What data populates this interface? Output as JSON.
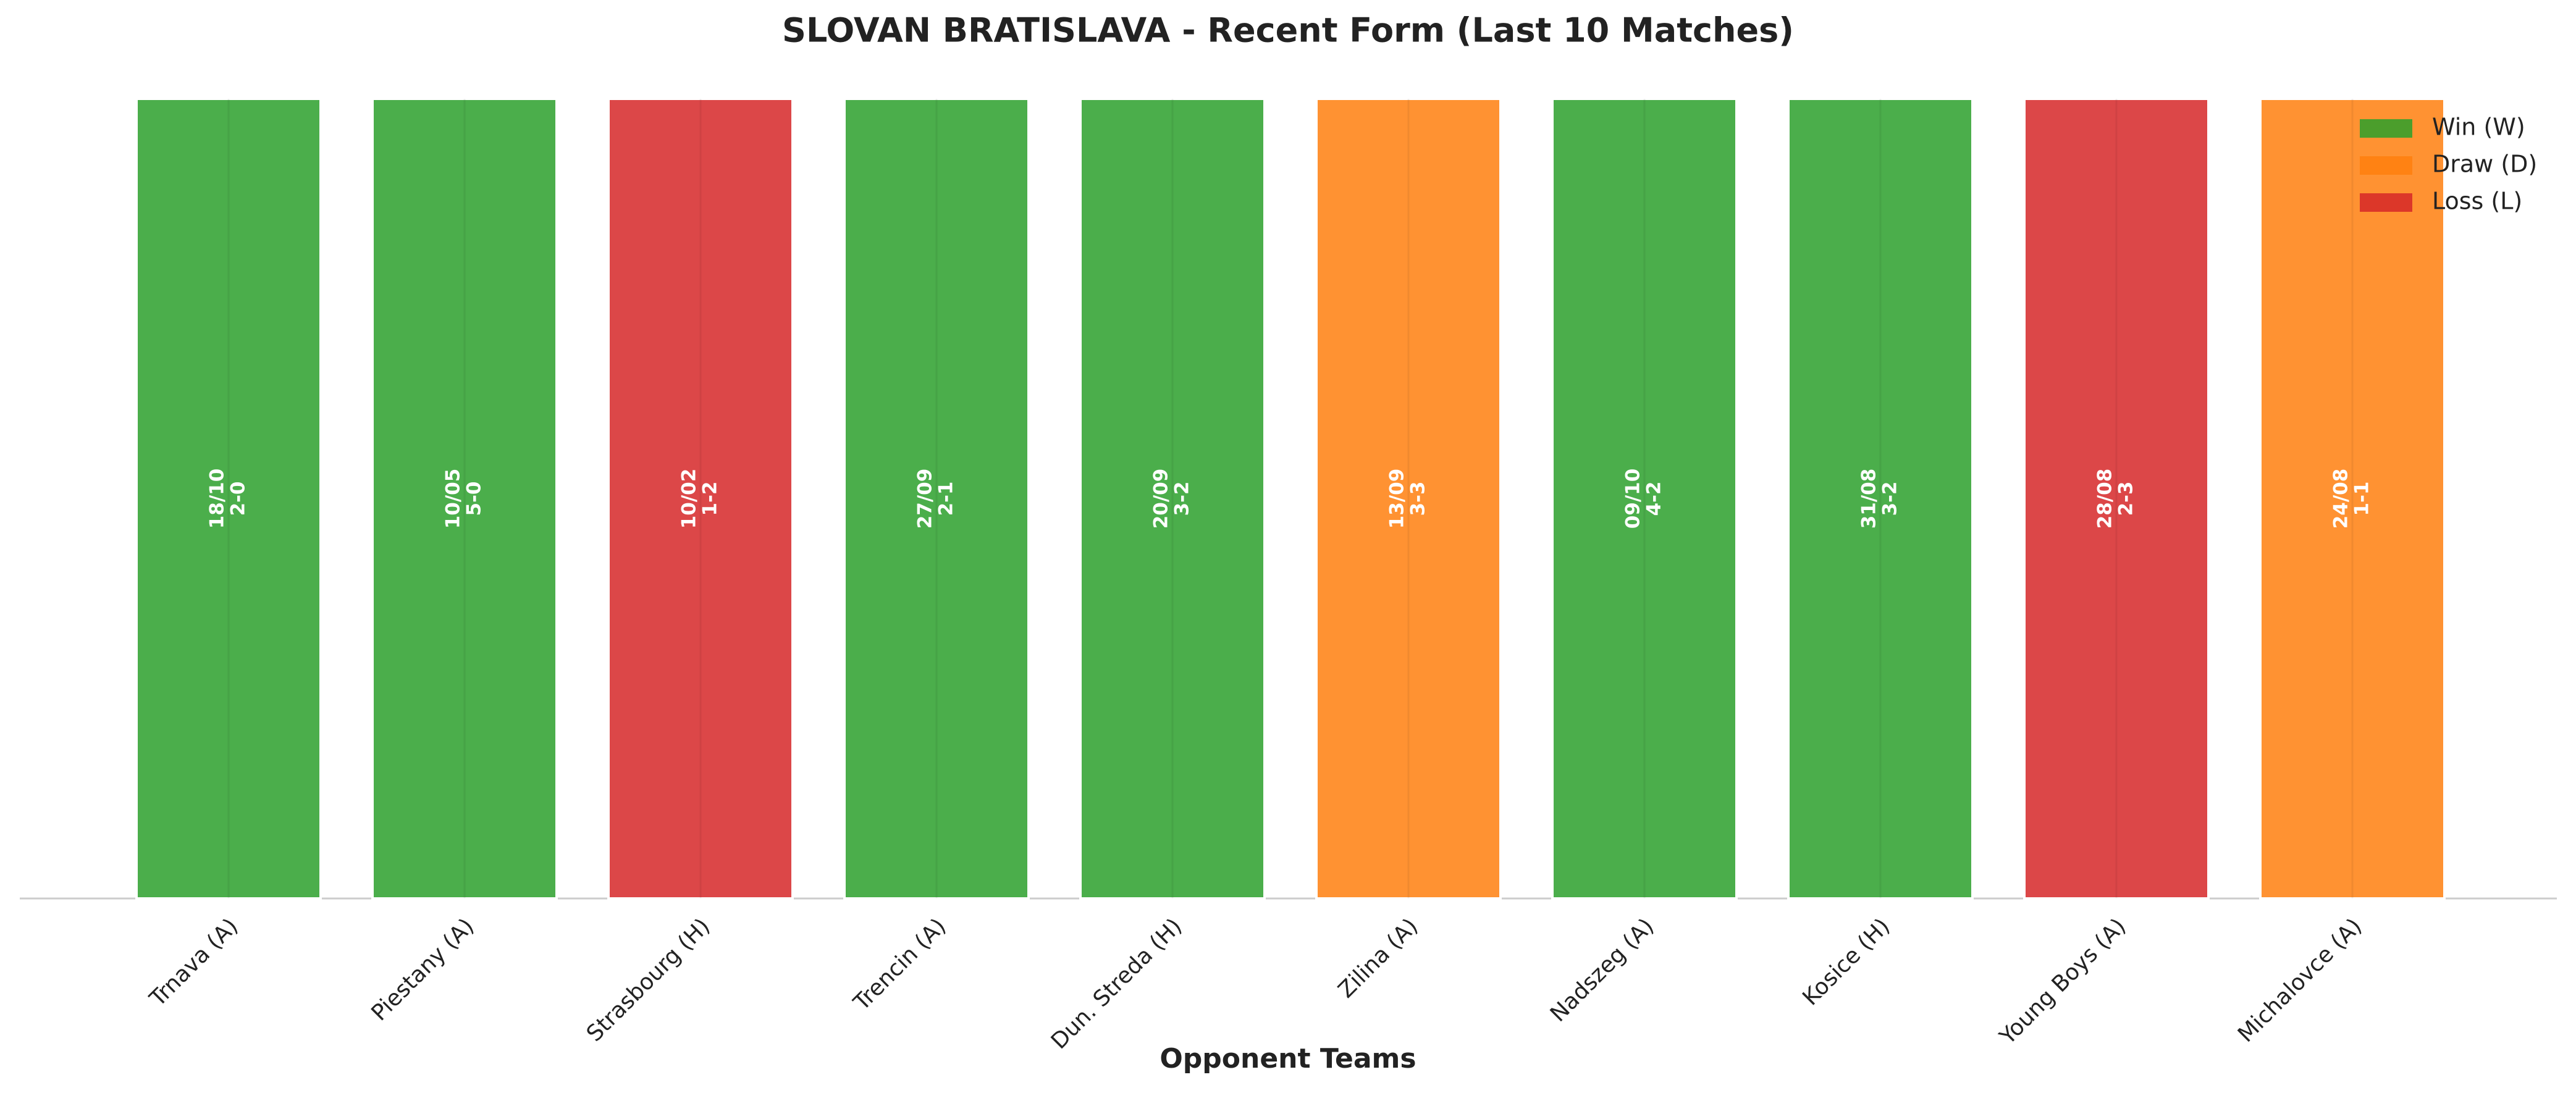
{
  "chart_data": {
    "type": "bar",
    "title": "SLOVAN BRATISLAVA - Recent Form (Last 10 Matches)",
    "x_label": "Opponent Teams",
    "categories": [
      "Trnava (A)",
      "Piestany (A)",
      "Strasbourg (H)",
      "Trencin (A)",
      "Dun. Streda (H)",
      "Zilina (A)",
      "Nadszeg (A)",
      "Kosice (H)",
      "Young Boys (A)",
      "Michalovce (A)"
    ],
    "values": [
      1,
      1,
      1,
      1,
      1,
      1,
      1,
      1,
      1,
      1
    ],
    "dates": [
      "18/10",
      "10/05",
      "10/02",
      "27/09",
      "20/09",
      "13/09",
      "09/10",
      "31/08",
      "28/08",
      "24/08"
    ],
    "scores": [
      "2-0",
      "5-0",
      "1-2",
      "2-1",
      "3-2",
      "3-3",
      "4-2",
      "3-2",
      "2-3",
      "1-1"
    ],
    "colors": [
      "#2ca02c",
      "#2ca02c",
      "#d62728",
      "#2ca02c",
      "#2ca02c",
      "#ff7f0e",
      "#2ca02c",
      "#2ca02c",
      "#d62728",
      "#ff7f0e"
    ],
    "legend": [
      {
        "name": "Win (W)",
        "color": "#2ca02c"
      },
      {
        "name": "Draw (D)",
        "color": "#ff7f0e"
      },
      {
        "name": "Loss (L)",
        "color": "#d62728"
      }
    ],
    "legend_position": "upper right",
    "ylim": [
      0,
      1
    ]
  }
}
